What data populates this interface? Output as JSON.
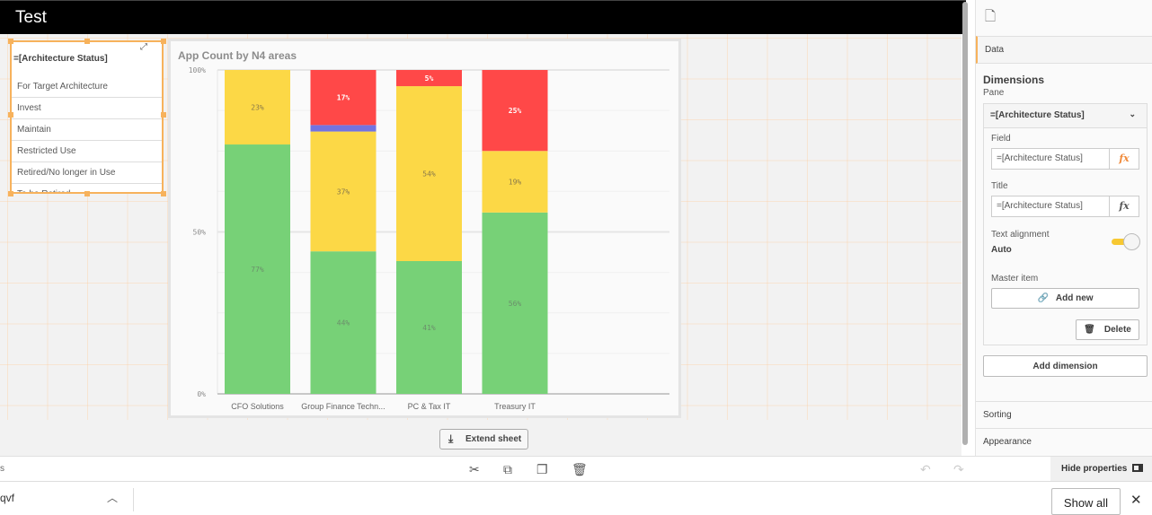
{
  "sheet": {
    "title": "Test",
    "extend_label": "Extend sheet"
  },
  "listbox": {
    "title": "=[Architecture Status]",
    "items": [
      "For Target Architecture",
      "Invest",
      "Maintain",
      "Restricted Use",
      "Retired/No longer in Use",
      "To be Retired"
    ]
  },
  "chart_data": {
    "type": "bar",
    "stacked": true,
    "title": "App Count by N4 areas",
    "categories": [
      "CFO Solutions",
      "Group Finance Techn...",
      "PC & Tax IT",
      "Treasury IT"
    ],
    "yticks": [
      "0%",
      "50%",
      "100%"
    ],
    "ylim": [
      0,
      100
    ],
    "grid": true,
    "series": [
      {
        "color": "#77d177",
        "values": [
          77,
          44,
          41,
          56
        ],
        "labels": [
          "77%",
          "44%",
          "41%",
          "56%"
        ]
      },
      {
        "color": "#fcd846",
        "values": [
          23,
          37,
          54,
          19
        ],
        "labels": [
          "23%",
          "37%",
          "54%",
          "19%"
        ]
      },
      {
        "color": "#7373e0",
        "values": [
          0,
          2,
          0,
          0
        ],
        "labels": [
          "",
          "",
          "",
          ""
        ]
      },
      {
        "color": "#ff4848",
        "values": [
          0,
          17,
          5,
          25
        ],
        "labels": [
          "",
          "17%",
          "5%",
          "25%"
        ]
      }
    ]
  },
  "toolbar": {
    "hide_properties": "Hide properties",
    "left_stub": "s"
  },
  "bottombar": {
    "file": "qvf",
    "show_all": "Show all"
  },
  "panel": {
    "tab_data": "Data",
    "dimensions": "Dimensions",
    "pane": "Pane",
    "dim_header": "=[Architecture Status]",
    "field_label": "Field",
    "field_value": "=[Architecture Status]",
    "title_label": "Title",
    "title_value": "=[Architecture Status]",
    "text_align_label": "Text alignment",
    "text_align_value": "Auto",
    "master_item_label": "Master item",
    "add_new": "Add new",
    "delete": "Delete",
    "add_dimension": "Add dimension",
    "sorting": "Sorting",
    "appearance": "Appearance",
    "accent": "#f7b25c"
  }
}
